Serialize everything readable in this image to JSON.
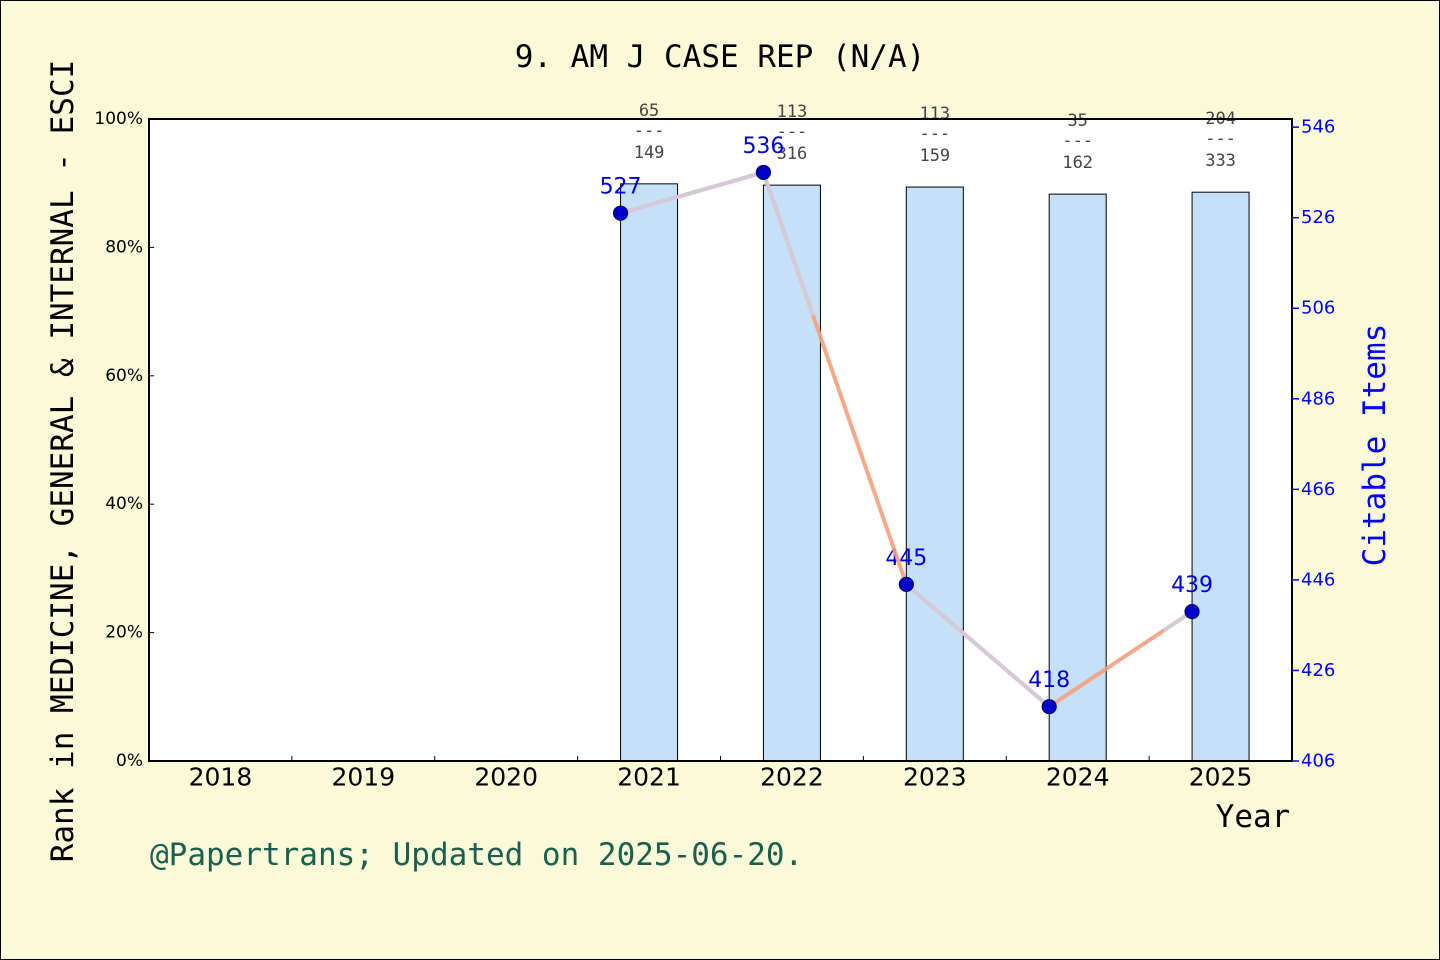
{
  "chart_data": {
    "type": "bar",
    "title": "9. AM J CASE REP (N/A)",
    "xlabel": "Year",
    "ylabel": "Rank in MEDICINE, GENERAL & INTERNAL - ESCI",
    "y2label": "Citable Items",
    "categories": [
      "2018",
      "2019",
      "2020",
      "2021",
      "2022",
      "2023",
      "2024",
      "2025"
    ],
    "ylim": [
      0,
      100
    ],
    "y_tick_labels": [
      "0%",
      "20%",
      "40%",
      "60%",
      "80%",
      "100%"
    ],
    "y2lim": [
      406,
      547.8
    ],
    "y2_ticks": [
      406,
      426,
      446,
      466,
      486,
      506,
      526,
      546
    ],
    "bars": {
      "axis": "left",
      "values": [
        null,
        null,
        null,
        89.9,
        89.7,
        89.4,
        88.3,
        88.6
      ],
      "color": "#c6e0f7"
    },
    "rank_labels": [
      null,
      null,
      null,
      {
        "rank": "65",
        "total": "149"
      },
      {
        "rank": "113",
        "total": "316"
      },
      {
        "rank": "113",
        "total": "159"
      },
      {
        "rank": "35",
        "total": "162"
      },
      {
        "rank": "204",
        "total": "333"
      }
    ],
    "rank_separator": "---",
    "line": {
      "axis": "right",
      "values": [
        null,
        null,
        null,
        527,
        536,
        445,
        418,
        439
      ],
      "color": "#f4a07c",
      "highlight_color": "#cfcfe6",
      "marker_color": "#0000cc"
    },
    "grid": false
  },
  "footer_note": "@Papertrans; Updated on 2025-06-20.",
  "colors": {
    "background": "#fafad8",
    "plot_background": "#ffffff",
    "right_axis": "#0000ff",
    "footer": "#1a5f50"
  }
}
